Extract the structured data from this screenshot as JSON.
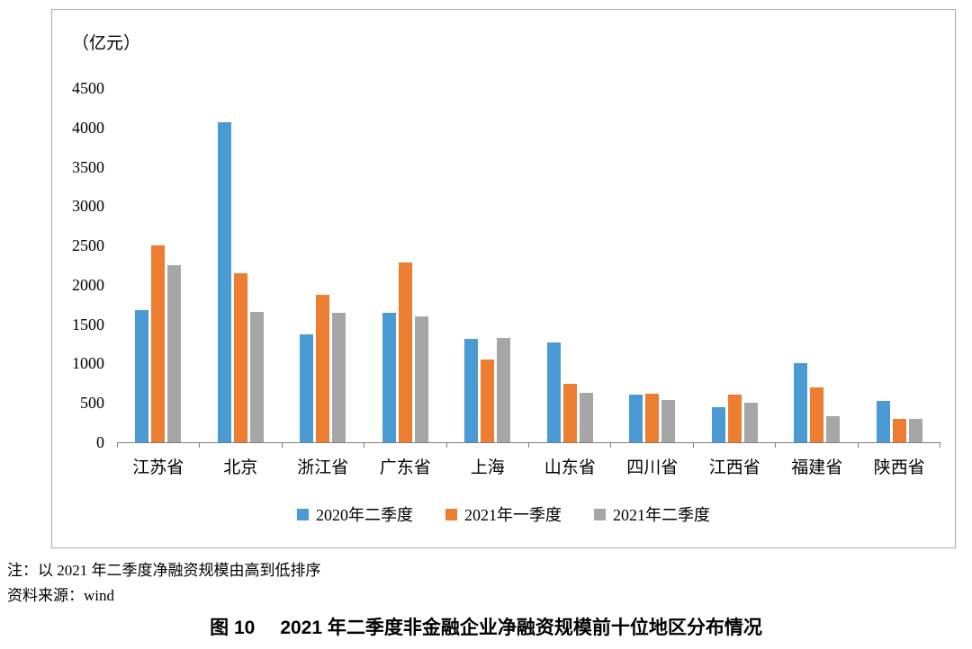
{
  "chart_data": {
    "type": "bar",
    "title": "图 10 2021 年二季度非金融企业净融资规模前十位地区分布情况",
    "unit_label": "（亿元）",
    "categories": [
      "江苏省",
      "北京",
      "浙江省",
      "广东省",
      "上海",
      "山东省",
      "四川省",
      "江西省",
      "福建省",
      "陕西省"
    ],
    "series": [
      {
        "name": "2020年二季度",
        "color": "#4a9ad4",
        "values": [
          1680,
          4070,
          1370,
          1650,
          1310,
          1270,
          600,
          450,
          1000,
          530
        ]
      },
      {
        "name": "2021年一季度",
        "color": "#ed7d31",
        "values": [
          2500,
          2150,
          1870,
          2280,
          1050,
          740,
          620,
          600,
          700,
          300
        ]
      },
      {
        "name": "2021年二季度",
        "color": "#a6a6a6",
        "values": [
          2250,
          1660,
          1650,
          1600,
          1330,
          630,
          540,
          500,
          330,
          300
        ]
      }
    ],
    "ylim": [
      0,
      4500
    ],
    "yticks": [
      0,
      500,
      1000,
      1500,
      2000,
      2500,
      3000,
      3500,
      4000,
      4500
    ],
    "grid": false,
    "legend_position": "bottom"
  },
  "footer": {
    "note": "注：以 2021 年二季度净融资规模由高到低排序",
    "source": "资料来源：wind",
    "figure_label": "图 10",
    "title_text": "2021 年二季度非金融企业净融资规模前十位地区分布情况"
  }
}
